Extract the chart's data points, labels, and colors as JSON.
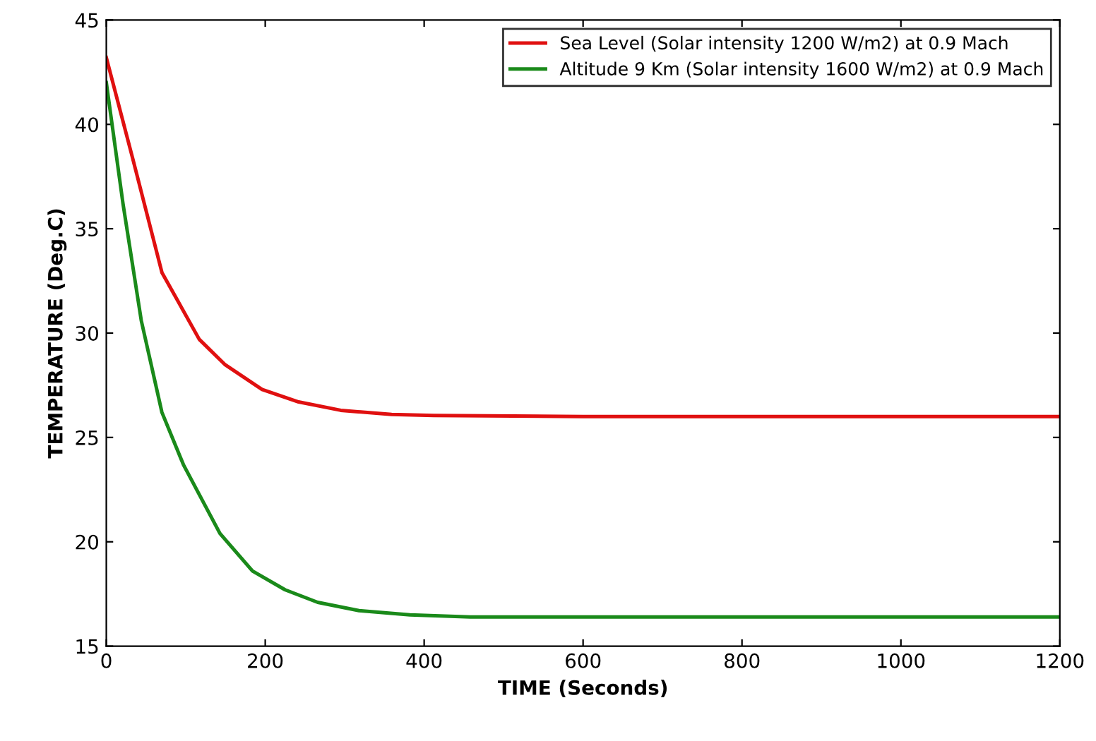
{
  "chart_data": {
    "type": "line",
    "xlabel": "TIME (Seconds)",
    "ylabel": "TEMPERATURE (Deg.C)",
    "xlim": [
      0,
      1200
    ],
    "xticks": [
      0,
      200,
      400,
      600,
      800,
      1000,
      1200
    ],
    "ylim": [
      15,
      45
    ],
    "yticks": [
      15,
      20,
      25,
      30,
      35,
      40,
      45
    ],
    "grid": false,
    "legend": "top right",
    "marker": "none",
    "line_style": "solid",
    "series": [
      {
        "name": "Sea Level (Solar intensity 1200 W/m2) at 0.9 Mach",
        "color": "#e01010",
        "x": [
          0,
          33,
          70,
          117,
          149,
          196,
          242,
          295,
          359,
          412,
          600,
          800,
          1000,
          1200
        ],
        "values": [
          43.2,
          38.4,
          32.9,
          29.7,
          28.5,
          27.3,
          26.7,
          26.3,
          26.1,
          26.05,
          26.0,
          26.0,
          26.0,
          26.0
        ]
      },
      {
        "name": "Altitude 9 Km (Solar intensity 1600 W/m2) at 0.9 Mach",
        "color": "#1a8a1a",
        "x": [
          0,
          21,
          44,
          70,
          97,
          143,
          184,
          225,
          266,
          318,
          382,
          458,
          600,
          800,
          1000,
          1200
        ],
        "values": [
          42.0,
          36.2,
          30.6,
          26.2,
          23.7,
          20.4,
          18.6,
          17.7,
          17.1,
          16.7,
          16.5,
          16.4,
          16.4,
          16.4,
          16.4,
          16.4
        ]
      }
    ]
  }
}
